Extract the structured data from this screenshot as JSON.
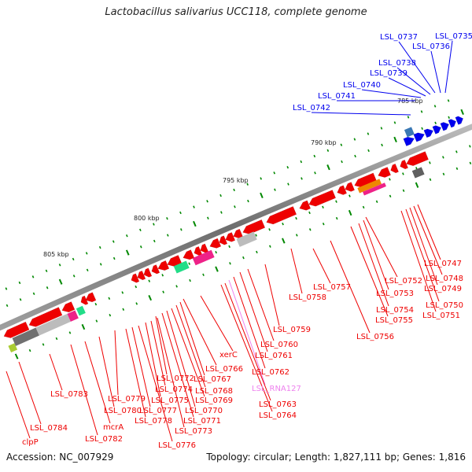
{
  "title": "Lactobacillus salivarius UCC118, complete genome",
  "footer": {
    "accession": "Accession: NC_007929",
    "summary": "Topology: circular; Length: 1,827,111 bp; Genes: 1,816"
  },
  "colors": {
    "forward_gene": "#0000ee",
    "reverse_gene": "#ee0000",
    "rna_gene": "#ee82ee",
    "tick": "#008800",
    "backbone": "#808080"
  },
  "kbp_ticks": [
    "785 kbp",
    "790 kbp",
    "795 kbp",
    "800 kbp",
    "805 kbp"
  ],
  "forward_labels": [
    "LSL_0735",
    "LSL_0736",
    "LSL_0737",
    "LSL_0738",
    "LSL_0739",
    "LSL_0740",
    "LSL_0741",
    "LSL_0742"
  ],
  "reverse_labels": [
    "LSL_0747",
    "LSL_0748",
    "LSL_0749",
    "LSL_0750",
    "LSL_0751",
    "LSL_0752",
    "LSL_0753",
    "LSL_0754",
    "LSL_0755",
    "LSL_0756",
    "LSL_0757",
    "LSL_0758",
    "LSL_0759",
    "LSL_0760",
    "LSL_0761",
    "LSL_0762",
    "LSL_RNA127",
    "LSL_0763",
    "LSL_0764",
    "xerC",
    "LSL_0766",
    "LSL_0767",
    "LSL_0768",
    "LSL_0769",
    "LSL_0770",
    "LSL_0771",
    "LSL_0772",
    "LSL_0773",
    "LSL_0774",
    "LSL_0775",
    "LSL_0776",
    "LSL_0777",
    "LSL_0778",
    "LSL_0779",
    "LSL_0780",
    "mcrA",
    "LSL_0782",
    "LSL_0783",
    "LSL_0784",
    "clpP"
  ]
}
